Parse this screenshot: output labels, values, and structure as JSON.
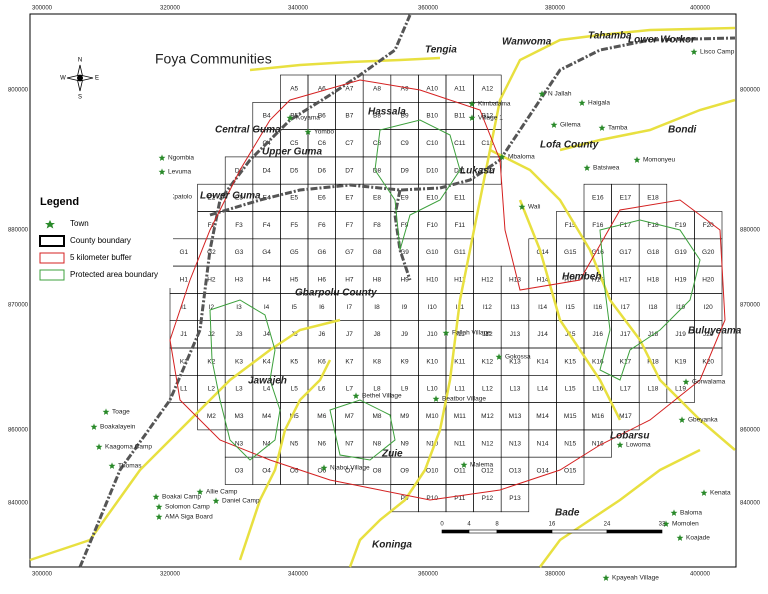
{
  "title": "Foya Communities",
  "compass": [
    "N",
    "E",
    "S",
    "W"
  ],
  "legend": {
    "heading": "Legend",
    "items": [
      "Town",
      "County boundary",
      "5 kilometer buffer",
      "Protected area boundary"
    ]
  },
  "axes": {
    "top": [
      "300000",
      "320000",
      "340000",
      "360000",
      "380000",
      "400000"
    ],
    "bottom": [
      "300000",
      "320000",
      "340000",
      "360000",
      "380000",
      "400000"
    ],
    "left": [
      "800000",
      "880000",
      "870000",
      "860000",
      "840000"
    ],
    "right": [
      "800000",
      "880000",
      "870000",
      "860000",
      "840000"
    ]
  },
  "scale_bar": [
    "0",
    "4",
    "8",
    "16",
    "24",
    "32"
  ],
  "regions": [
    "Wanwoma",
    "Tahamba",
    "Lower Workor",
    "Tengia",
    "Hassala",
    "Central Guma",
    "Upper Guma",
    "Lower Guma",
    "Lukasu",
    "Lofa County",
    "Bondi",
    "Gbarpolu County",
    "Hembeh",
    "Buluyeama",
    "Jawajeh",
    "Zuie",
    "Lobarsu",
    "Bade",
    "Koninga"
  ],
  "towns": [
    "Lisco Camp",
    "Kimbalama",
    "Village 1",
    "N Jallah",
    "Haigala",
    "Gilema",
    "Tamba",
    "Mbaloma",
    "Batsiwea",
    "Momonyeu",
    "Wali",
    "Ngombia",
    "Levuma",
    "Kpatolo",
    "Koyama",
    "Yombo",
    "Toage",
    "Boakalayein",
    "Kaagoma Camp",
    "Thomas",
    "Boakai Camp",
    "Solomon Camp",
    "AMA Siga Board",
    "Allie Camp",
    "Daniel Camp",
    "Kpayeah Village",
    "Baloma",
    "Momolen",
    "Koajade",
    "Kenata",
    "Gbeyanka",
    "Gorwalama",
    "Lowoma",
    "Fallah Village",
    "Gokossa",
    "Bethel Village",
    "Beatbor Village",
    "Njaboi Village",
    "Malema"
  ],
  "grid": [
    [
      null,
      null,
      null,
      null,
      "A5",
      "A6",
      "A7",
      "A8",
      "A9",
      "A10",
      "A11",
      "A12",
      null,
      null,
      null,
      null,
      null,
      null,
      null,
      null
    ],
    [
      null,
      null,
      null,
      "B4",
      "B5",
      "B6",
      "B7",
      "B8",
      "B9",
      "B10",
      "B11",
      "B12",
      null,
      null,
      null,
      null,
      null,
      null,
      null,
      null
    ],
    [
      null,
      null,
      null,
      "C4",
      "C5",
      "C6",
      "C7",
      "C8",
      "C9",
      "C10",
      "C11",
      "C12",
      null,
      null,
      null,
      null,
      null,
      null,
      null,
      null
    ],
    [
      null,
      null,
      "D3",
      "D4",
      "D5",
      "D6",
      "D7",
      "D8",
      "D9",
      "D10",
      "D11",
      "D12",
      null,
      null,
      null,
      null,
      null,
      null,
      null,
      null
    ],
    [
      null,
      "E2",
      "E3",
      "E4",
      "E5",
      "E6",
      "E7",
      "E8",
      "E9",
      "E10",
      "E11",
      null,
      null,
      null,
      null,
      "E16",
      "E17",
      "E18",
      null,
      null
    ],
    [
      null,
      "F2",
      "F3",
      "F4",
      "F5",
      "F6",
      "F7",
      "F8",
      "F9",
      "F10",
      "F11",
      null,
      null,
      null,
      "F15",
      "F16",
      "F17",
      "F18",
      "F19",
      "F20"
    ],
    [
      "G1",
      "G2",
      "G3",
      "G4",
      "G5",
      "G6",
      "G7",
      "G8",
      "G9",
      "G10",
      "G11",
      null,
      null,
      "G14",
      "G15",
      "G16",
      "G17",
      "G18",
      "G19",
      "G20"
    ],
    [
      "H1",
      "H2",
      "H3",
      "H4",
      "H5",
      "H6",
      "H7",
      "H8",
      "H9",
      "H10",
      "H11",
      "H12",
      "H13",
      "H14",
      "H15",
      "H16",
      "H17",
      "H18",
      "H19",
      "H20"
    ],
    [
      "I1",
      "I2",
      "I3",
      "I4",
      "I5",
      "I6",
      "I7",
      "I8",
      "I9",
      "I10",
      "I11",
      "I12",
      "I13",
      "I14",
      "I15",
      "I16",
      "I17",
      "I18",
      "I19",
      "I20"
    ],
    [
      "J1",
      "J2",
      "J3",
      "J4",
      "J5",
      "J6",
      "J7",
      "J8",
      "J9",
      "J10",
      "J11",
      "J12",
      "J13",
      "J14",
      "J15",
      "J16",
      "J17",
      "J18",
      "J19",
      "J20"
    ],
    [
      "K1",
      "K2",
      "K3",
      "K4",
      "K5",
      "K6",
      "K7",
      "K8",
      "K9",
      "K10",
      "K11",
      "K12",
      "K13",
      "K14",
      "K15",
      "K16",
      "K17",
      "K18",
      "K19",
      "K20"
    ],
    [
      "L1",
      "L2",
      "L3",
      "L4",
      "L5",
      "L6",
      "L7",
      "L8",
      "L9",
      "L10",
      "L11",
      "L12",
      "L13",
      "L14",
      "L15",
      "L16",
      "L17",
      "L18",
      "L19",
      null
    ],
    [
      null,
      "M2",
      "M3",
      "M4",
      "M5",
      "M6",
      "M7",
      "M8",
      "M9",
      "M10",
      "M11",
      "M12",
      "M13",
      "M14",
      "M15",
      "M16",
      "M17",
      null,
      null,
      null
    ],
    [
      null,
      null,
      "N3",
      "N4",
      "N5",
      "N6",
      "N7",
      "N8",
      "N9",
      "N10",
      "N11",
      "N12",
      "N13",
      "N14",
      "N15",
      "N16",
      null,
      null,
      null,
      null
    ],
    [
      null,
      null,
      "O3",
      "O4",
      "O5",
      "O6",
      "O7",
      "O8",
      "O9",
      "O10",
      "O11",
      "O12",
      "O13",
      "O14",
      "O15",
      null,
      null,
      null,
      null,
      null
    ],
    [
      null,
      null,
      null,
      null,
      null,
      null,
      null,
      null,
      "P9",
      "P10",
      "P11",
      "P12",
      "P13",
      null,
      null,
      null,
      null,
      null,
      null,
      null
    ]
  ]
}
